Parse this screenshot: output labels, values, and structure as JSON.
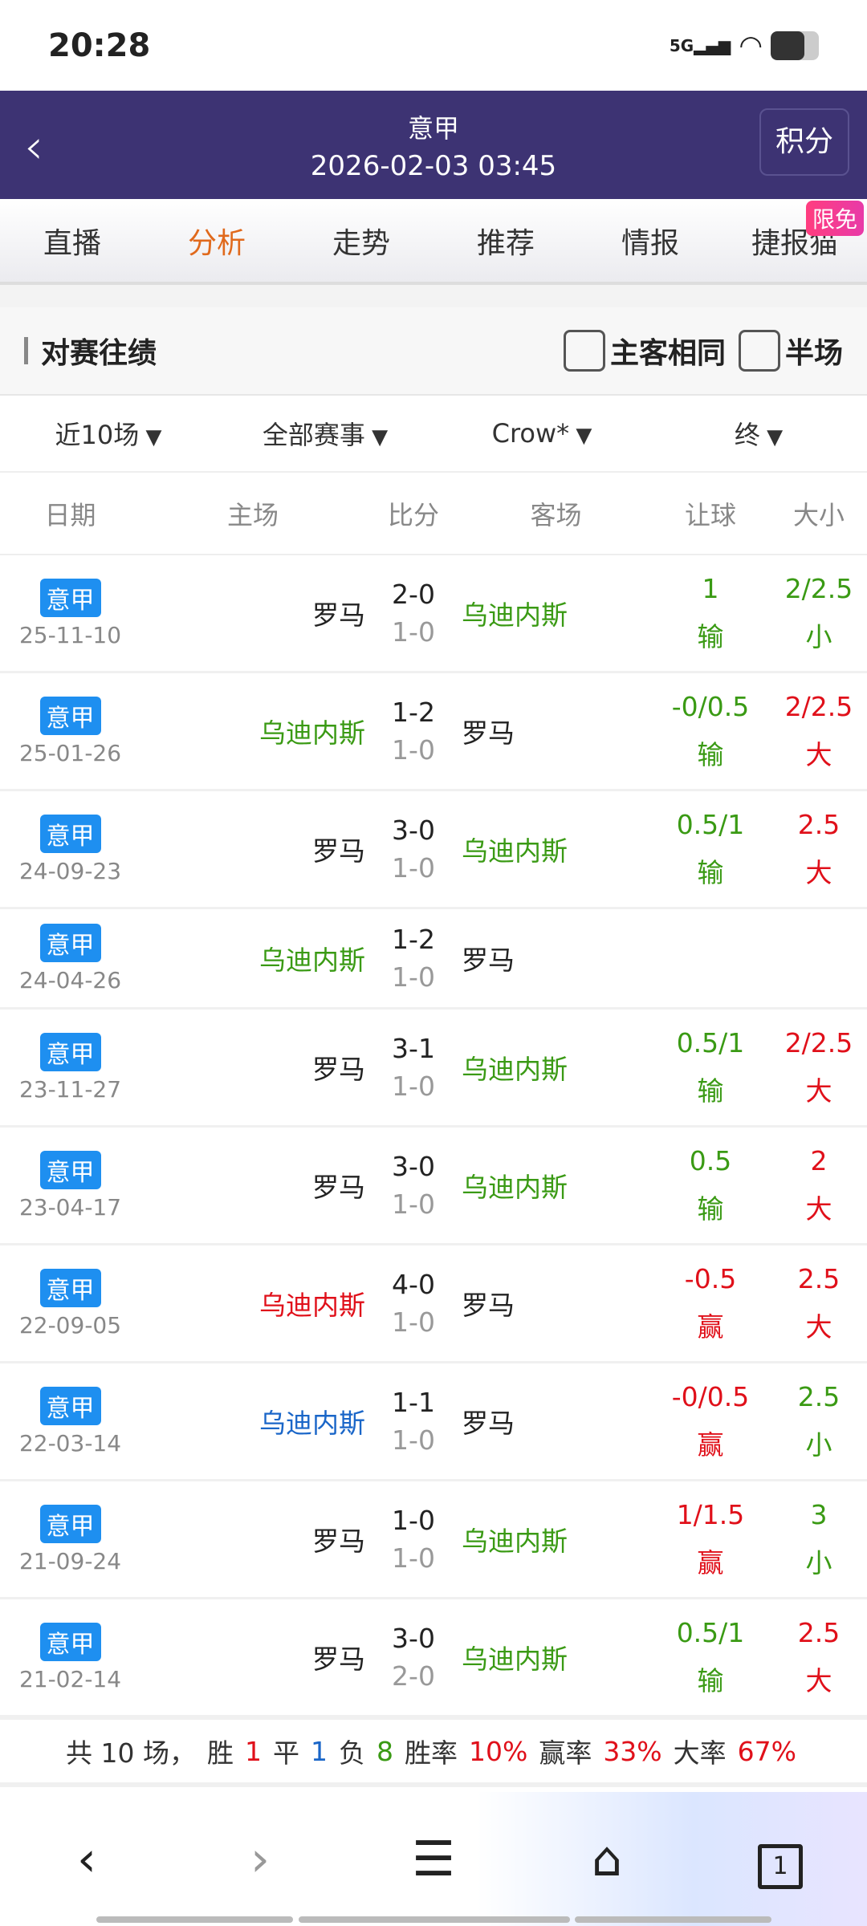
{
  "status": {
    "time": "20:28",
    "network": "5G"
  },
  "header": {
    "back_icon": "chevron-left-icon",
    "league": "意甲",
    "datetime": "2026-02-03 03:45",
    "points_button": "积分"
  },
  "tabs": [
    {
      "label": "直播"
    },
    {
      "label": "分析",
      "active": true
    },
    {
      "label": "走势"
    },
    {
      "label": "推荐"
    },
    {
      "label": "情报"
    },
    {
      "label": "捷报猫",
      "badge": "限免"
    }
  ],
  "section": {
    "title": "对赛往绩",
    "options": [
      {
        "label": "主客相同",
        "checked": false
      },
      {
        "label": "半场",
        "checked": false
      }
    ]
  },
  "filters": [
    "近10场",
    "全部赛事",
    "Crow*",
    "终"
  ],
  "columns": [
    "日期",
    "主场",
    "比分",
    "客场",
    "让球",
    "大小"
  ],
  "colors": {
    "green": "#3a9a14",
    "red": "#e0101a",
    "blue": "#1a66c8",
    "accent": "#e0691c",
    "header_bg": "#3d3373",
    "league_badge": "#1e8ff0"
  },
  "rows": [
    {
      "league": "意甲",
      "date": "25-11-10",
      "home": "罗马",
      "home_color": "k",
      "score": "2-0",
      "half": "1-0",
      "away": "乌迪内斯",
      "away_color": "g",
      "hc": "1",
      "hc_res": "输",
      "hc_color": "g",
      "size": "2/2.5",
      "size_res": "小",
      "size_color": "g"
    },
    {
      "league": "意甲",
      "date": "25-01-26",
      "home": "乌迪内斯",
      "home_color": "g",
      "score": "1-2",
      "half": "1-0",
      "away": "罗马",
      "away_color": "k",
      "hc": "-0/0.5",
      "hc_res": "输",
      "hc_color": "g",
      "size": "2/2.5",
      "size_res": "大",
      "size_color": "r"
    },
    {
      "league": "意甲",
      "date": "24-09-23",
      "home": "罗马",
      "home_color": "k",
      "score": "3-0",
      "half": "1-0",
      "away": "乌迪内斯",
      "away_color": "g",
      "hc": "0.5/1",
      "hc_res": "输",
      "hc_color": "g",
      "size": "2.5",
      "size_res": "大",
      "size_color": "r"
    },
    {
      "league": "意甲",
      "date": "24-04-26",
      "home": "乌迪内斯",
      "home_color": "g",
      "score": "1-2",
      "half": "1-0",
      "away": "罗马",
      "away_color": "k",
      "hc": "",
      "hc_res": "",
      "hc_color": "g",
      "size": "",
      "size_res": "",
      "size_color": "r",
      "short": true
    },
    {
      "league": "意甲",
      "date": "23-11-27",
      "home": "罗马",
      "home_color": "k",
      "score": "3-1",
      "half": "1-0",
      "away": "乌迪内斯",
      "away_color": "g",
      "hc": "0.5/1",
      "hc_res": "输",
      "hc_color": "g",
      "size": "2/2.5",
      "size_res": "大",
      "size_color": "r"
    },
    {
      "league": "意甲",
      "date": "23-04-17",
      "home": "罗马",
      "home_color": "k",
      "score": "3-0",
      "half": "1-0",
      "away": "乌迪内斯",
      "away_color": "g",
      "hc": "0.5",
      "hc_res": "输",
      "hc_color": "g",
      "size": "2",
      "size_res": "大",
      "size_color": "r"
    },
    {
      "league": "意甲",
      "date": "22-09-05",
      "home": "乌迪内斯",
      "home_color": "r",
      "score": "4-0",
      "half": "1-0",
      "away": "罗马",
      "away_color": "k",
      "hc": "-0.5",
      "hc_res": "赢",
      "hc_color": "r",
      "size": "2.5",
      "size_res": "大",
      "size_color": "r"
    },
    {
      "league": "意甲",
      "date": "22-03-14",
      "home": "乌迪内斯",
      "home_color": "b",
      "score": "1-1",
      "half": "1-0",
      "away": "罗马",
      "away_color": "k",
      "hc": "-0/0.5",
      "hc_res": "赢",
      "hc_color": "r",
      "size": "2.5",
      "size_res": "小",
      "size_color": "g"
    },
    {
      "league": "意甲",
      "date": "21-09-24",
      "home": "罗马",
      "home_color": "k",
      "score": "1-0",
      "half": "1-0",
      "away": "乌迪内斯",
      "away_color": "g",
      "hc": "1/1.5",
      "hc_res": "赢",
      "hc_color": "r",
      "size": "3",
      "size_res": "小",
      "size_color": "g"
    },
    {
      "league": "意甲",
      "date": "21-02-14",
      "home": "罗马",
      "home_color": "k",
      "score": "3-0",
      "half": "2-0",
      "away": "乌迪内斯",
      "away_color": "g",
      "hc": "0.5/1",
      "hc_res": "输",
      "hc_color": "g",
      "size": "2.5",
      "size_res": "大",
      "size_color": "r"
    }
  ],
  "summary": {
    "total": "共 10 场，",
    "win_label": "胜",
    "win": "1",
    "draw_label": "平",
    "draw": "1",
    "loss_label": "负",
    "loss": "8",
    "winrate_label": "胜率",
    "winrate": "10%",
    "hcrate_label": "赢率",
    "hcrate": "33%",
    "bigrate_label": "大率",
    "bigrate": "67%"
  },
  "nav": {
    "icons": [
      "back-icon",
      "forward-icon",
      "menu-icon",
      "home-icon",
      "tabs-icon"
    ],
    "tab_count": "1"
  }
}
